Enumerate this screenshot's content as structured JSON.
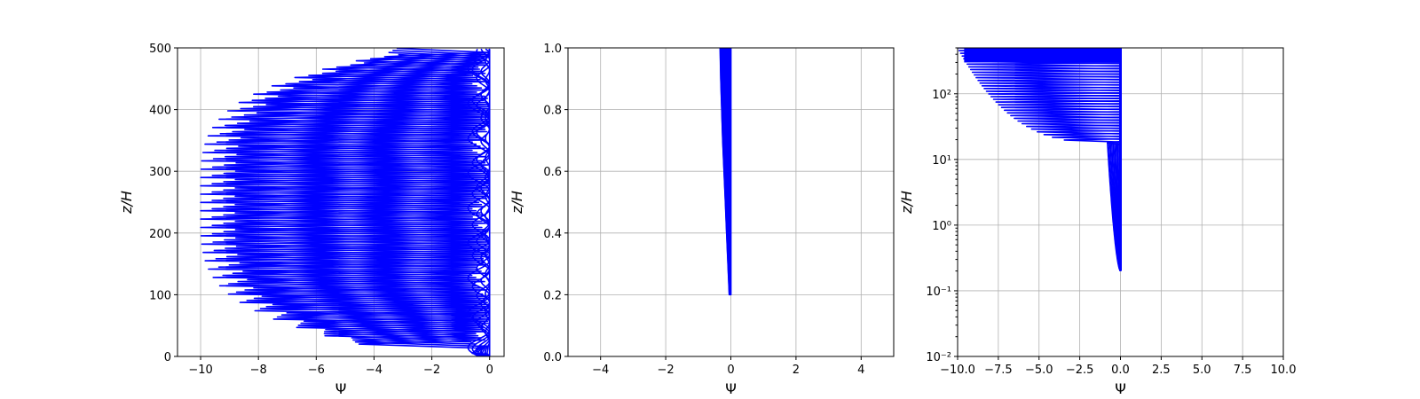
{
  "colors": {
    "series": "#0000ff",
    "grid": "#b0b0b0",
    "axes": "#000000"
  },
  "chart_data": [
    {
      "type": "line",
      "title": "",
      "xlabel": "Ψ",
      "ylabel": "z/H",
      "xlim": [
        -10.8,
        0.5
      ],
      "ylim": [
        0,
        500
      ],
      "xscale": "linear",
      "yscale": "linear",
      "grid": true,
      "xticks": [
        -10,
        -8,
        -6,
        -4,
        -2,
        0
      ],
      "xtick_labels": [
        "−10",
        "−8",
        "−6",
        "−4",
        "−2",
        "0"
      ],
      "yticks": [
        0,
        100,
        200,
        300,
        400,
        500
      ],
      "ytick_labels": [
        "0",
        "100",
        "200",
        "300",
        "400",
        "500"
      ],
      "series_description": "zigzag profiles: Ψ ≈ 0 near the axis, sharp negative spikes every ~13.5 z/H from z/H ≈ 20 to 500, envelope minimum ≈ −10 near z/H ≈ 250",
      "series": [
        {
          "curves": 40,
          "z_start": 0.2,
          "z_end": 500,
          "z_spike_first": 20,
          "z_spike_spacing": 13.5,
          "envelope": {
            "z_center": 250,
            "min": -10.0,
            "half_width": 240,
            "exponent": 4
          },
          "near_axis_psi": [
            -0.6,
            0.0
          ]
        }
      ]
    },
    {
      "type": "line",
      "title": "",
      "xlabel": "Ψ",
      "ylabel": "z/H",
      "xlim": [
        -5,
        5
      ],
      "ylim": [
        0,
        1.0
      ],
      "xscale": "linear",
      "yscale": "linear",
      "grid": true,
      "xticks": [
        -4,
        -2,
        0,
        2,
        4
      ],
      "xtick_labels": [
        "−4",
        "−2",
        "0",
        "2",
        "4"
      ],
      "yticks": [
        0,
        0.2,
        0.4,
        0.6,
        0.8,
        1.0
      ],
      "ytick_labels": [
        "0.0",
        "0.2",
        "0.4",
        "0.6",
        "0.8",
        "1.0"
      ],
      "series": [
        {
          "curves": 40,
          "points_z": [
            0.2,
            0.3,
            0.4,
            0.5,
            0.6,
            0.7,
            0.8,
            0.9,
            1.0
          ],
          "psi_min": [
            -0.05,
            -0.09,
            -0.13,
            -0.17,
            -0.21,
            -0.25,
            -0.28,
            -0.31,
            -0.33
          ],
          "psi_max": [
            0.0,
            0.0,
            0.0,
            0.0,
            0.0,
            0.0,
            0.0,
            0.0,
            0.0
          ]
        }
      ]
    },
    {
      "type": "line",
      "title": "",
      "xlabel": "Ψ",
      "ylabel": "z/H",
      "xlim": [
        -10,
        10
      ],
      "ylim": [
        0.01,
        500
      ],
      "xscale": "linear",
      "yscale": "log",
      "grid": true,
      "xticks": [
        -10,
        -7.5,
        -5,
        -2.5,
        0,
        2.5,
        5,
        7.5,
        10
      ],
      "xtick_labels": [
        "−10.0",
        "−7.5",
        "−5.0",
        "−2.5",
        "0.0",
        "2.5",
        "5.0",
        "7.5",
        "10.0"
      ],
      "yticks": [
        0.01,
        0.1,
        1,
        10,
        100
      ],
      "ytick_labels": [
        "10⁻²",
        "10⁻¹",
        "10⁰",
        "10¹",
        "10²"
      ],
      "series": [
        {
          "curves": 40,
          "z_start": 0.2,
          "z_end": 500,
          "near_axis_psi": [
            -0.8,
            0.0
          ],
          "spike_onset_z": 18,
          "spike_min_psi": -10.0
        }
      ]
    }
  ]
}
